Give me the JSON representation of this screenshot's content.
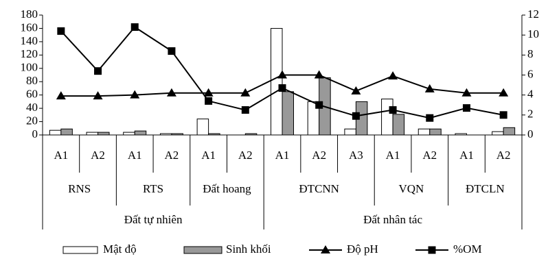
{
  "chart_data": {
    "type": "bar-line",
    "groups": [
      {
        "name": "Đất tự nhiên",
        "groups": [
          {
            "name": "RNS",
            "categories": [
              "A1",
              "A2"
            ]
          },
          {
            "name": "RTS",
            "categories": [
              "A1",
              "A2"
            ]
          },
          {
            "name": "Đất hoang",
            "categories": [
              "A1",
              "A2"
            ]
          }
        ]
      },
      {
        "name": "Đất nhân tác",
        "groups": [
          {
            "name": "ĐTCNN",
            "categories": [
              "A1",
              "A2",
              "A3"
            ]
          },
          {
            "name": "VQN",
            "categories": [
              "A1",
              "A2"
            ]
          },
          {
            "name": "ĐTCLN",
            "categories": [
              "A1",
              "A2"
            ]
          }
        ]
      }
    ],
    "series": [
      {
        "name": "Mật độ",
        "type": "bar",
        "color": "#ffffff",
        "values": [
          7,
          4,
          4,
          2,
          24,
          0,
          160,
          50,
          9,
          54,
          9,
          2,
          5
        ]
      },
      {
        "name": "Sinh khối",
        "type": "bar",
        "color": "#999999",
        "values": [
          9,
          4,
          6,
          2,
          2,
          2,
          65,
          86,
          50,
          31,
          9,
          0,
          11
        ]
      },
      {
        "name": "Độ pH",
        "type": "line",
        "marker": "triangle",
        "axis": "y2",
        "color": "#000000",
        "values": [
          3.9,
          3.9,
          4.0,
          4.2,
          4.2,
          4.2,
          6.0,
          6.0,
          4.4,
          5.9,
          4.6,
          4.2,
          4.2
        ]
      },
      {
        "name": "%OM",
        "type": "line",
        "marker": "square",
        "axis": "y2",
        "color": "#000000",
        "values": [
          10.4,
          6.4,
          10.8,
          8.4,
          3.4,
          2.5,
          4.7,
          3.0,
          1.9,
          2.5,
          1.7,
          2.7,
          2.0
        ]
      }
    ],
    "ylim": [
      0,
      180
    ],
    "yticks": [
      0,
      20,
      40,
      60,
      80,
      100,
      120,
      140,
      160,
      180
    ],
    "y2lim": [
      0,
      12
    ],
    "y2ticks": [
      0,
      2,
      4,
      6,
      8,
      10,
      12
    ],
    "legend": "bottom"
  }
}
